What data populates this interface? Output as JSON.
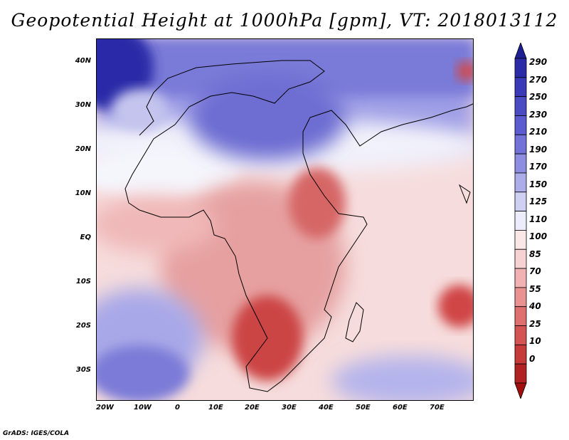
{
  "title": "Geopotential Height at 1000hPa [gpm], VT: 2018013112",
  "credit": "GrADS: IGES/COLA",
  "latitude_labels": [
    "40N",
    "30N",
    "20N",
    "10N",
    "EQ",
    "10S",
    "20S",
    "30S"
  ],
  "longitude_labels": [
    "20W",
    "10W",
    "0",
    "10E",
    "20E",
    "30E",
    "40E",
    "50E",
    "60E",
    "70E"
  ],
  "colorbar": {
    "levels": [
      "290",
      "270",
      "250",
      "230",
      "210",
      "190",
      "170",
      "150",
      "125",
      "110",
      "100",
      "85",
      "70",
      "55",
      "40",
      "25",
      "10",
      "0"
    ],
    "colors": [
      "#1f1f94",
      "#2b2ba8",
      "#3a3ab8",
      "#4b4bc4",
      "#5c5cd0",
      "#7272d8",
      "#8d8de2",
      "#adade9",
      "#d0d0f2",
      "#ececfa",
      "#fae8e8",
      "#f7d2d2",
      "#f0b2b2",
      "#e89292",
      "#e07070",
      "#d45353",
      "#c63a3a",
      "#b32222",
      "#a10f0f"
    ]
  }
}
